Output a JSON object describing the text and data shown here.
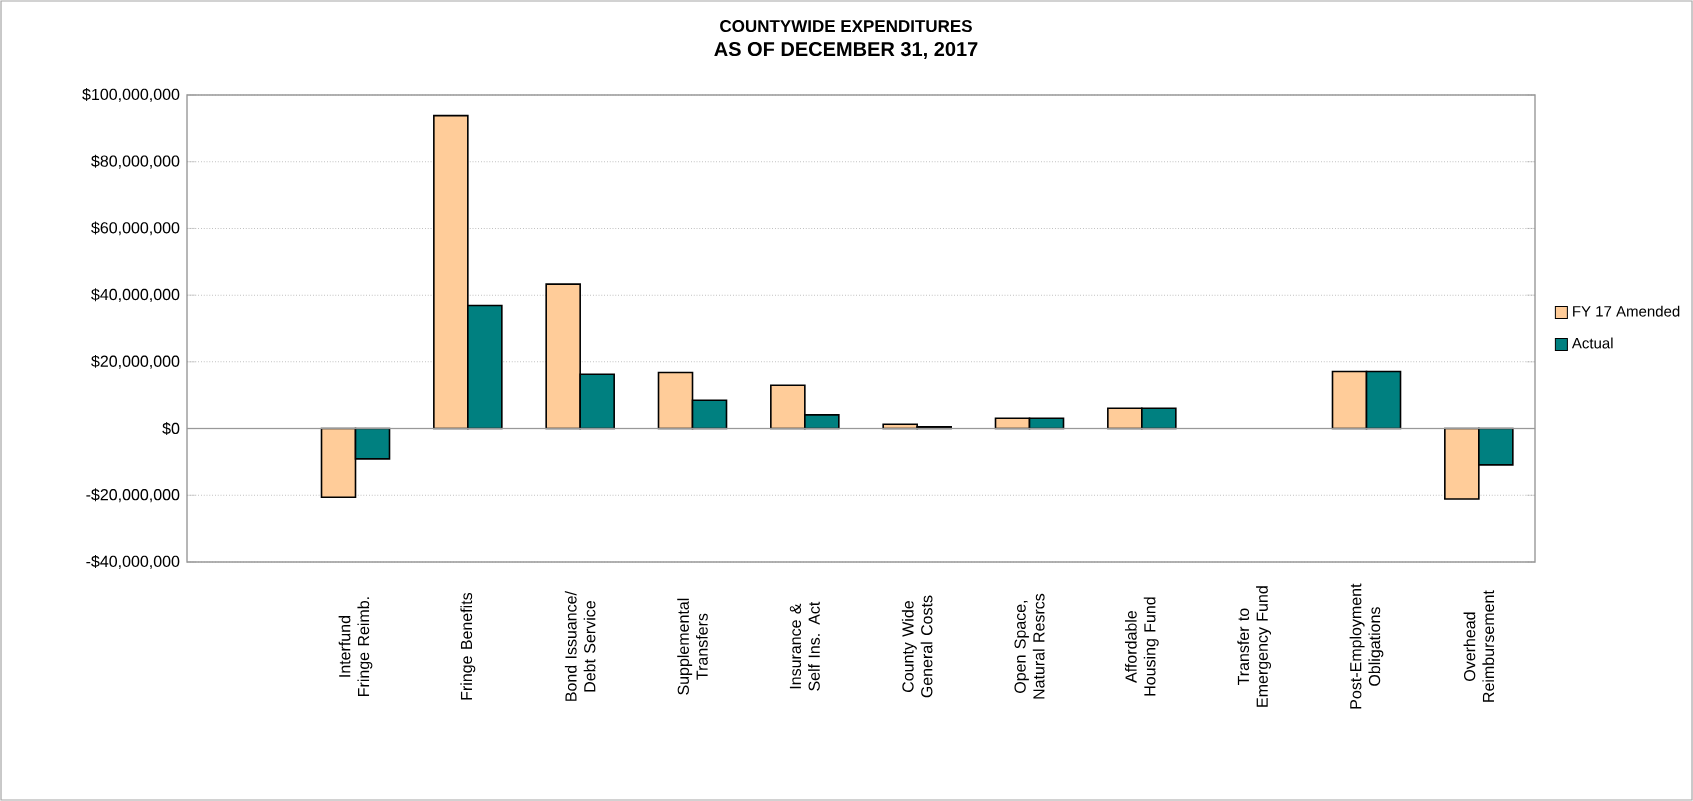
{
  "chart_data": {
    "type": "bar",
    "title": "COUNTYWIDE EXPENDITURES",
    "subtitle": "AS OF DECEMBER 31, 2017",
    "categories": [
      null,
      "Interfund Fringe Reimb.",
      "Fringe Benefits",
      "Bond Issuance/ Debt Service",
      "Supplemental Transfers",
      "Insurance & Self Ins. Act",
      "County Wide General Costs",
      "Open Space, Natural Resrcs",
      "Affordable Housing Fund",
      "Transfer to Emergency Fund",
      "Post-Employment Obligations",
      "Overhead Reimbursement"
    ],
    "series": [
      {
        "name": "FY 17 Amended",
        "color": "#ffcc99",
        "values": [
          null,
          -20600000,
          93800000,
          43300000,
          16800000,
          13000000,
          1300000,
          3100000,
          6100000,
          null,
          17100000,
          -21100000
        ]
      },
      {
        "name": "Actual",
        "color": "#008080",
        "values": [
          null,
          -9100000,
          36900000,
          16300000,
          8500000,
          4100000,
          500000,
          3100000,
          6100000,
          null,
          17100000,
          -10900000
        ]
      }
    ],
    "ylim": [
      -40000000,
      100000000
    ],
    "yticks": [
      {
        "value": -40000000,
        "label": "-$40,000,000"
      },
      {
        "value": -20000000,
        "label": "-$20,000,000"
      },
      {
        "value": 0,
        "label": "$0"
      },
      {
        "value": 20000000,
        "label": "$20,000,000"
      },
      {
        "value": 40000000,
        "label": "$40,000,000"
      },
      {
        "value": 60000000,
        "label": "$60,000,000"
      },
      {
        "value": 80000000,
        "label": "$80,000,000"
      },
      {
        "value": 100000000,
        "label": "$100,000,000"
      }
    ],
    "grid": "y",
    "legend": "right"
  }
}
